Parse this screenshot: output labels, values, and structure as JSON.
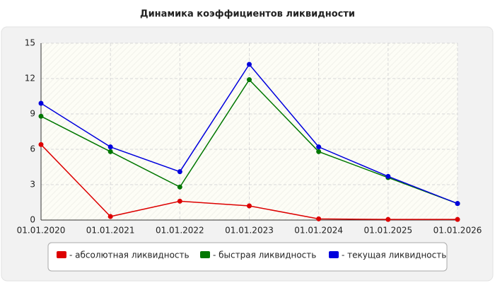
{
  "chart_data": {
    "type": "line",
    "title": "Динамика коэффициентов ликвидности",
    "categories": [
      "01.01.2020",
      "01.01.2021",
      "01.01.2022",
      "01.01.2023",
      "01.01.2024",
      "01.01.2025",
      "01.01.2026"
    ],
    "series": [
      {
        "name": "- абсолютная ликвидность",
        "color": "#dd0000",
        "values": [
          6.4,
          0.3,
          1.6,
          1.2,
          0.1,
          0.05,
          0.05
        ]
      },
      {
        "name": "- быстрая ликвидность",
        "color": "#007700",
        "values": [
          8.8,
          5.8,
          2.8,
          11.9,
          5.8,
          3.6,
          1.4
        ]
      },
      {
        "name": "- текущая ликвидность",
        "color": "#0000dd",
        "values": [
          9.9,
          6.2,
          4.1,
          13.2,
          6.2,
          3.7,
          1.4
        ]
      }
    ],
    "ylim": [
      0,
      15
    ],
    "yticks": [
      0,
      3,
      6,
      9,
      12,
      15
    ],
    "grid": true,
    "legend": "bottom"
  }
}
